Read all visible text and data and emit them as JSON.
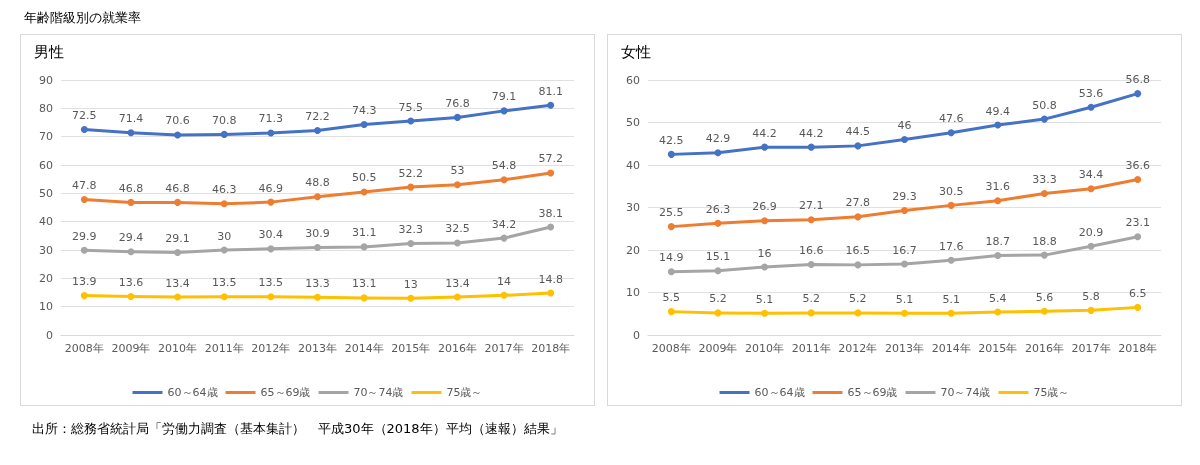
{
  "chart_data": [
    {
      "type": "line",
      "title": "男性",
      "annotations": [
        "年齢階級別の就業率",
        "出所：総務省統計局「労働力調査（基本集計）　平成30年（2018年）平均（速報）結果」"
      ],
      "categories": [
        "2008年",
        "2009年",
        "2010年",
        "2011年",
        "2012年",
        "2013年",
        "2014年",
        "2015年",
        "2016年",
        "2017年",
        "2018年"
      ],
      "series": [
        {
          "name": "60～64歳",
          "color": "#4472c4",
          "values": [
            72.5,
            71.4,
            70.6,
            70.8,
            71.3,
            72.2,
            74.3,
            75.5,
            76.8,
            79.1,
            81.1
          ]
        },
        {
          "name": "65～69歳",
          "color": "#ed7d31",
          "values": [
            47.8,
            46.8,
            46.8,
            46.3,
            46.9,
            48.8,
            50.5,
            52.2,
            53,
            54.8,
            57.2
          ]
        },
        {
          "name": "70～74歳",
          "color": "#a5a5a5",
          "values": [
            29.9,
            29.4,
            29.1,
            30,
            30.4,
            30.9,
            31.1,
            32.3,
            32.5,
            34.2,
            38.1
          ]
        },
        {
          "name": "75歳～",
          "color": "#ffc000",
          "values": [
            13.9,
            13.6,
            13.4,
            13.5,
            13.5,
            13.3,
            13.1,
            13,
            13.4,
            14,
            14.8
          ]
        }
      ],
      "ylim": [
        0,
        90
      ],
      "yticks": [
        0,
        10,
        20,
        30,
        40,
        50,
        60,
        70,
        80,
        90
      ],
      "grid": "y",
      "legend": "bottom",
      "marker": "circle",
      "data_labels": true
    },
    {
      "type": "line",
      "title": "女性",
      "categories": [
        "2008年",
        "2009年",
        "2010年",
        "2011年",
        "2012年",
        "2013年",
        "2014年",
        "2015年",
        "2016年",
        "2017年",
        "2018年"
      ],
      "series": [
        {
          "name": "60～64歳",
          "color": "#4472c4",
          "values": [
            42.5,
            42.9,
            44.2,
            44.2,
            44.5,
            46,
            47.6,
            49.4,
            50.8,
            53.6,
            56.8
          ]
        },
        {
          "name": "65～69歳",
          "color": "#ed7d31",
          "values": [
            25.5,
            26.3,
            26.9,
            27.1,
            27.8,
            29.3,
            30.5,
            31.6,
            33.3,
            34.4,
            36.6
          ]
        },
        {
          "name": "70～74歳",
          "color": "#a5a5a5",
          "values": [
            14.9,
            15.1,
            16,
            16.6,
            16.5,
            16.7,
            17.6,
            18.7,
            18.8,
            20.9,
            23.1
          ]
        },
        {
          "name": "75歳～",
          "color": "#ffc000",
          "values": [
            5.5,
            5.2,
            5.1,
            5.2,
            5.2,
            5.1,
            5.1,
            5.4,
            5.6,
            5.8,
            6.5
          ]
        }
      ],
      "ylim": [
        0,
        60
      ],
      "yticks": [
        0,
        10,
        20,
        30,
        40,
        50,
        60
      ],
      "grid": "y",
      "legend": "bottom",
      "marker": "circle",
      "data_labels": true
    }
  ]
}
